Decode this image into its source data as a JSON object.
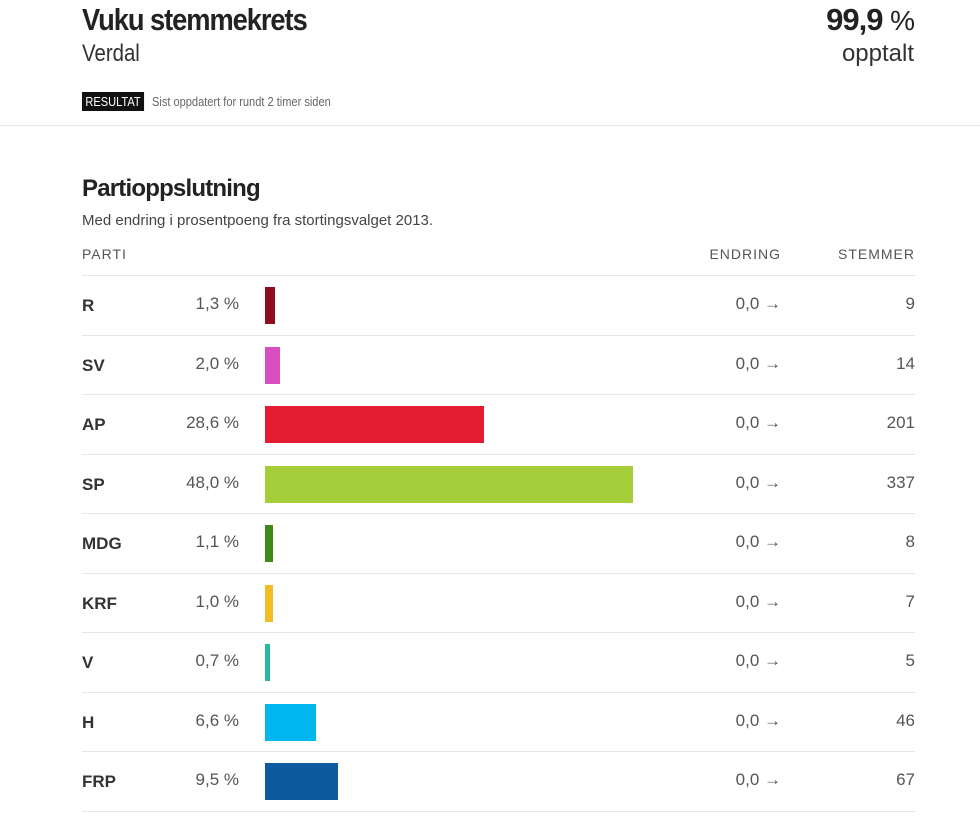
{
  "header": {
    "title": "Vuku stemmekrets",
    "subtitle": "Verdal",
    "badge": "RESULTAT",
    "updated": "Sist oppdatert for rundt 2 timer siden",
    "counted_value": "99,9",
    "counted_unit": "%",
    "counted_label": "opptalt"
  },
  "section": {
    "title": "Partioppslutning",
    "description": "Med endring i prosentpoeng fra stortingsvalget 2013.",
    "columns": {
      "party": "PARTI",
      "change": "ENDRING",
      "votes": "STEMMER"
    }
  },
  "rows": [
    {
      "party": "R",
      "share_label": "1,3 %",
      "share": 1.3,
      "change": "0,0 →",
      "votes": "9",
      "color": "#8e0c1e"
    },
    {
      "party": "SV",
      "share_label": "2,0 %",
      "share": 2.0,
      "change": "0,0 →",
      "votes": "14",
      "color": "#d94fc1"
    },
    {
      "party": "AP",
      "share_label": "28,6 %",
      "share": 28.6,
      "change": "0,0 →",
      "votes": "201",
      "color": "#e31c34"
    },
    {
      "party": "SP",
      "share_label": "48,0 %",
      "share": 48.0,
      "change": "0,0 →",
      "votes": "337",
      "color": "#a5cd39"
    },
    {
      "party": "MDG",
      "share_label": "1,1 %",
      "share": 1.1,
      "change": "0,0 →",
      "votes": "8",
      "color": "#3f8a17"
    },
    {
      "party": "KRF",
      "share_label": "1,0 %",
      "share": 1.0,
      "change": "0,0 →",
      "votes": "7",
      "color": "#f0bd25"
    },
    {
      "party": "V",
      "share_label": "0,7 %",
      "share": 0.7,
      "change": "0,0 →",
      "votes": "5",
      "color": "#2bb6a0"
    },
    {
      "party": "H",
      "share_label": "6,6 %",
      "share": 6.6,
      "change": "0,0 →",
      "votes": "46",
      "color": "#00b6ee"
    },
    {
      "party": "FRP",
      "share_label": "9,5 %",
      "share": 9.5,
      "change": "0,0 →",
      "votes": "67",
      "color": "#0e5aa0"
    }
  ]
}
